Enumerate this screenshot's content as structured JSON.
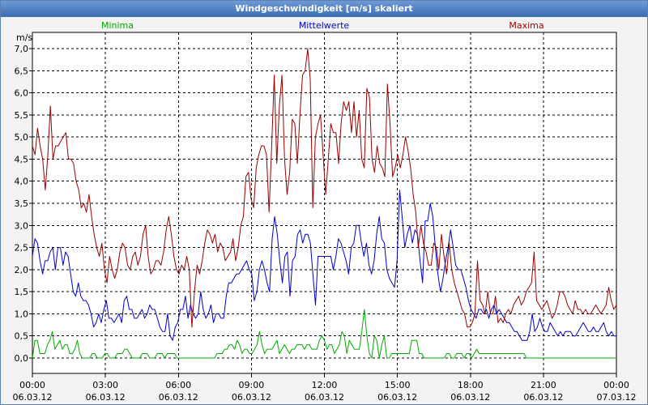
{
  "window_title": "Windgeschwindigkeit [m/s] skaliert",
  "colors": {
    "min": "#00aa00",
    "avg": "#0000cc",
    "max": "#990000",
    "grid": "#000000",
    "axis": "#000000"
  },
  "chart_data": {
    "type": "line",
    "title": "Windgeschwindigkeit [m/s] skaliert",
    "ylabel": "m/s",
    "xlabel": "",
    "ylim": [
      0,
      7.0
    ],
    "xlim_hours": [
      0,
      24
    ],
    "y_ticks": [
      "0,0",
      "0,5",
      "1,0",
      "1,5",
      "2,0",
      "2,5",
      "3,0",
      "3,5",
      "4,0",
      "4,5",
      "5,0",
      "5,5",
      "6,0",
      "6,5",
      "7,0"
    ],
    "x_ticks": [
      {
        "time": "00:00",
        "date": "06.03.12"
      },
      {
        "time": "03:00",
        "date": "06.03.12"
      },
      {
        "time": "06:00",
        "date": "06.03.12"
      },
      {
        "time": "09:00",
        "date": "06.03.12"
      },
      {
        "time": "12:00",
        "date": "06.03.12"
      },
      {
        "time": "15:00",
        "date": "06.03.12"
      },
      {
        "time": "18:00",
        "date": "06.03.12"
      },
      {
        "time": "21:00",
        "date": "06.03.12"
      },
      {
        "time": "00:00",
        "date": "07.03.12"
      }
    ],
    "legend": [
      "Minima",
      "Mittelwerte",
      "Maxima"
    ],
    "series": [
      {
        "name": "Minima",
        "color_key": "min",
        "values": [
          0,
          0.4,
          0.4,
          0.1,
          0.1,
          0.1,
          0.3,
          0.4,
          0.6,
          0.2,
          0.3,
          0.4,
          0.2,
          0.3,
          0.3,
          0.1,
          0.1,
          0.2,
          0.4,
          0.1,
          0,
          0,
          0,
          0,
          0.1,
          0.1,
          0,
          0,
          0,
          0.1,
          0.1,
          0,
          0,
          0,
          0.1,
          0.1,
          0.1,
          0.2,
          0.2,
          0.1,
          0,
          0,
          0,
          0,
          0.1,
          0.1,
          0.1,
          0,
          0,
          0,
          0.1,
          0.1,
          0.1,
          0,
          0.1,
          0.1,
          0.1,
          0.1,
          0,
          0,
          0,
          0,
          0,
          0,
          0,
          0,
          0,
          0,
          0,
          0,
          0,
          0,
          0,
          0,
          0.1,
          0.1,
          0.1,
          0.2,
          0.2,
          0.3,
          0.3,
          0.2,
          0.4,
          0.3,
          0.1,
          0.2,
          0.2,
          0.1,
          0.1,
          0.2,
          0.3,
          0.6,
          0.3,
          0.1,
          0.2,
          0.2,
          0.2,
          0.3,
          0.4,
          0.1,
          0.2,
          0.3,
          0.2,
          0.1,
          0.2,
          0.2,
          0.3,
          0.3,
          0.3,
          0.2,
          0.3,
          0.3,
          0.2,
          0.2,
          0.2,
          0.4,
          0.5,
          0.4,
          0.2,
          0.3,
          0.3,
          0.1,
          0.2,
          0.3,
          0.6,
          0.5,
          0.1,
          0.4,
          0.3,
          0.2,
          0.2,
          0.2,
          0.6,
          1.1,
          0.5,
          0.1,
          0,
          0.5,
          0.4,
          0,
          0.3,
          0.5,
          0,
          0,
          0.1,
          0.1,
          0.1,
          0.1,
          0.1,
          0.1,
          0.1,
          0.1,
          0.4,
          0.4,
          0.4,
          0.1,
          0.1,
          0,
          0,
          0,
          0,
          0,
          0,
          0,
          0,
          0,
          0.1,
          0.1,
          0,
          0,
          0.1,
          0.1,
          0.1,
          0,
          0.1,
          0.1,
          0,
          0.1,
          0.2,
          0.1,
          0.1,
          0.1,
          0.1,
          0.1,
          0.1,
          0.1,
          0.1,
          0.1,
          0.1,
          0.1,
          0.1,
          0.1,
          0.1,
          0.1,
          0.1,
          0.1,
          0.1,
          0.1,
          0,
          0,
          0,
          0,
          0,
          0,
          0,
          0,
          0,
          0,
          0,
          0,
          0,
          0,
          0,
          0,
          0,
          0,
          0,
          0,
          0,
          0,
          0,
          0,
          0,
          0,
          0,
          0,
          0,
          0,
          0,
          0,
          0,
          0,
          0,
          0,
          0
        ]
      },
      {
        "name": "Mittelwerte",
        "color_key": "avg",
        "values": [
          2.3,
          2.7,
          2.6,
          2.2,
          1.9,
          2.2,
          2.2,
          2.4,
          2.5,
          2.0,
          2.5,
          2.5,
          2.1,
          2.4,
          2.3,
          1.9,
          1.5,
          1.4,
          1.7,
          1.4,
          1.3,
          1.3,
          1.2,
          1.0,
          0.7,
          0.8,
          1.0,
          0.8,
          1.1,
          1.3,
          0.9,
          0.9,
          0.8,
          0.9,
          1.0,
          0.8,
          1.3,
          1.4,
          1.1,
          1.1,
          0.9,
          0.9,
          1.0,
          1.1,
          0.9,
          1.0,
          1.2,
          1.1,
          1.1,
          0.9,
          0.7,
          0.6,
          0.6,
          1.0,
          0.5,
          0.4,
          0.7,
          0.8,
          1.1,
          1.1,
          1.4,
          0.9,
          1.2,
          1.0,
          0.9,
          1.0,
          1.5,
          1.1,
          0.9,
          1.0,
          1.2,
          0.8,
          1.0,
          1.0,
          0.9,
          0.9,
          1.4,
          1.7,
          1.7,
          1.8,
          1.9,
          1.9,
          2.0,
          2.1,
          2.2,
          2.0,
          1.9,
          1.3,
          1.5,
          2.0,
          2.2,
          2.0,
          1.7,
          1.5,
          2.7,
          3.2,
          2.8,
          2.2,
          1.7,
          2.3,
          2.4,
          1.4,
          2.2,
          2.3,
          2.8,
          2.9,
          2.6,
          2.8,
          2.8,
          2.6,
          1.9,
          1.2,
          2.3,
          2.3,
          2.3,
          2.3,
          2.3,
          2.3,
          2.0,
          2.3,
          2.7,
          2.6,
          2.4,
          2.2,
          1.9,
          2.5,
          2.6,
          3.0,
          3.0,
          2.6,
          2.3,
          2.6,
          2.1,
          1.9,
          2.2,
          2.8,
          3.2,
          2.7,
          2.6,
          2.0,
          1.8,
          1.7,
          1.6,
          2.2,
          3.8,
          3.2,
          2.5,
          2.8,
          3.0,
          2.6,
          2.9,
          2.8,
          2.2,
          1.7,
          3.1,
          3.1,
          3.5,
          3.2,
          2.5,
          1.9,
          1.5,
          1.8,
          2.2,
          2.5,
          2.9,
          2.5,
          2.1,
          2.0,
          2.0,
          1.8,
          1.6,
          1.3,
          1.1,
          1.0,
          0.9,
          1.1,
          1.1,
          1.0,
          1.1,
          0.9,
          1.1,
          1.2,
          1.0,
          1.1,
          1.0,
          0.9,
          0.8,
          0.8,
          0.7,
          0.6,
          0.6,
          0.5,
          0.4,
          0.4,
          0.4,
          0.6,
          1.0,
          0.6,
          0.7,
          0.9,
          0.7,
          0.6,
          0.6,
          0.8,
          0.7,
          0.6,
          0.5,
          0.6,
          0.5,
          0.6,
          0.6,
          0.6,
          0.5,
          0.5,
          0.6,
          0.7,
          0.8,
          0.7,
          0.6,
          0.6,
          0.7,
          0.6,
          0.6,
          0.7,
          0.8,
          0.6,
          0.5,
          0.6,
          0.5,
          0.5
        ]
      },
      {
        "name": "Maxima",
        "color_key": "max",
        "values": [
          4.8,
          4.6,
          5.2,
          4.8,
          4.5,
          3.8,
          4.6,
          5.7,
          4.5,
          4.8,
          4.8,
          4.9,
          5.0,
          5.1,
          4.5,
          4.5,
          4.4,
          4.0,
          3.8,
          3.4,
          3.5,
          3.3,
          3.7,
          3.2,
          2.8,
          2.5,
          2.3,
          2.6,
          2.0,
          1.7,
          2.3,
          2.0,
          1.8,
          2.0,
          2.4,
          2.6,
          2.5,
          2.1,
          2.0,
          2.3,
          2.4,
          2.1,
          2.3,
          2.8,
          3.0,
          2.3,
          1.9,
          2.0,
          2.2,
          2.2,
          2.1,
          2.4,
          2.9,
          3.2,
          2.8,
          2.3,
          2.0,
          1.9,
          2.1,
          2.0,
          2.3,
          2.0,
          0.7,
          1.5,
          2.1,
          1.9,
          2.2,
          2.6,
          2.9,
          2.8,
          2.6,
          2.8,
          2.4,
          2.6,
          2.5,
          2.2,
          2.3,
          2.4,
          2.7,
          2.2,
          2.5,
          3.0,
          3.2,
          4.1,
          4.2,
          3.6,
          3.4,
          4.3,
          4.6,
          4.8,
          4.8,
          4.6,
          3.3,
          4.8,
          6.4,
          4.4,
          5.7,
          6.4,
          4.5,
          3.7,
          4.2,
          5.4,
          5.3,
          4.4,
          5.5,
          6.4,
          6.5,
          7.0,
          6.3,
          3.4,
          5.0,
          5.3,
          5.5,
          4.6,
          3.7,
          4.5,
          5.3,
          5.1,
          5.1,
          4.4,
          5.3,
          5.8,
          5.6,
          5.8,
          5.1,
          5.8,
          5.0,
          5.6,
          4.5,
          4.3,
          6.1,
          5.9,
          4.5,
          4.2,
          4.8,
          4.4,
          4.3,
          4.1,
          6.2,
          5.3,
          4.1,
          4.3,
          4.6,
          4.3,
          4.6,
          5.0,
          4.7,
          4.3,
          3.7,
          3.3,
          2.5,
          3.0,
          2.6,
          2.4,
          2.1,
          2.1,
          2.6,
          2.5,
          2.0,
          2.8,
          2.3,
          1.9,
          2.6,
          2.0,
          1.7,
          1.5,
          1.3,
          1.1,
          1.0,
          0.7,
          0.7,
          0.8,
          1.0,
          2.2,
          1.3,
          1.2,
          1.0,
          1.5,
          1.0,
          1.0,
          1.4,
          0.8,
          0.9,
          0.8,
          1.0,
          1.1,
          1.0,
          1.2,
          1.3,
          1.4,
          1.2,
          1.3,
          1.5,
          1.6,
          1.7,
          2.4,
          1.3,
          1.2,
          1.1,
          1.2,
          1.3,
          1.1,
          0.9,
          1.0,
          1.2,
          1.5,
          1.5,
          1.4,
          1.2,
          1.1,
          1.0,
          1.3,
          1.1,
          1.1,
          1.0,
          1.1,
          1.0,
          1.0,
          1.1,
          1.2,
          1.1,
          1.0,
          1.1,
          1.2,
          1.6,
          1.3,
          1.1,
          1.2
        ]
      }
    ]
  }
}
